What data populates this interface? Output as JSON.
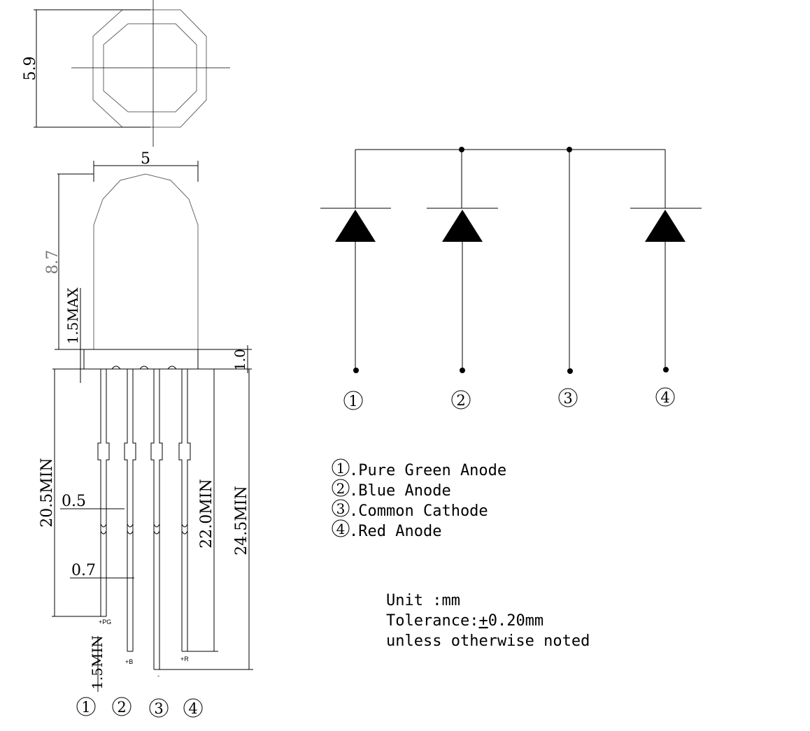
{
  "drawing": {
    "dimensions": {
      "top_diameter": "5.9",
      "body_width": "5",
      "body_height": "8.7",
      "flange_max": "1.5MAX",
      "flange_thickness": "1.0",
      "pin1_length": "20.5MIN",
      "pin_width": "0.5",
      "pin_pitch": "0.7",
      "pin_standoff": "1.5MIN",
      "pin4_length": "22.0MIN",
      "pin3_length": "24.5MIN"
    },
    "pin_tags": {
      "p1": "+PG",
      "p2": "+B",
      "p3": "-",
      "p4": "+R"
    },
    "pin_numbers": [
      "1",
      "2",
      "3",
      "4"
    ]
  },
  "schematic": {
    "pin_numbers": [
      "1",
      "2",
      "3",
      "4"
    ]
  },
  "legend": [
    {
      "num": "1",
      "label": ".Pure Green Anode"
    },
    {
      "num": "2",
      "label": ".Blue Anode"
    },
    {
      "num": "3",
      "label": ".Common Cathode"
    },
    {
      "num": "4",
      "label": ".Red Anode"
    }
  ],
  "notes": {
    "line1": "Unit :mm",
    "line2_prefix": "Tolerance:",
    "line2_pm": "+",
    "line2_value": "0.20mm",
    "line3": "unless otherwise noted"
  }
}
